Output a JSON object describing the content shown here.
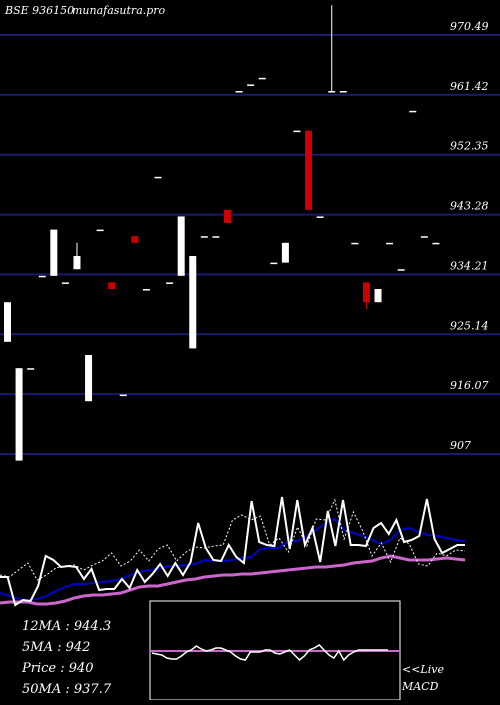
{
  "header": {
    "symbol": "BSE 936150",
    "site": "munafasutra.pro"
  },
  "colors": {
    "background": "#000000",
    "grid": "#1a1a6e",
    "up": "#ffffff",
    "down": "#cc0000",
    "ma_fast": "#ffffff",
    "ma_mid": "#0000cc",
    "ma_slow": "#cc66cc",
    "macd_line": "#ffffff",
    "macd_signal": "#cc66cc"
  },
  "stats": {
    "ma12": "12MA : 944.3",
    "ma5": "5MA : 942",
    "price": "Price   : 940",
    "ma50": "50MA : 937.7"
  },
  "macd": {
    "live": "<<Live",
    "label": "MACD"
  },
  "chart_data": {
    "type": "candlestick",
    "y_ticks": [
      "970.49",
      "961.42",
      "952.35",
      "943.28",
      "934.21",
      "925.14",
      "916.07",
      "907"
    ],
    "y_tick_values": [
      970.49,
      961.42,
      952.35,
      943.28,
      934.21,
      925.14,
      916.07,
      907
    ],
    "ylim": [
      901,
      975
    ],
    "grid": true,
    "candles": [
      {
        "o": 924,
        "c": 930,
        "h": 930,
        "l": 924
      },
      {
        "o": 906,
        "c": 920,
        "h": 920,
        "l": 906
      },
      {
        "o": 920,
        "c": 920,
        "h": 920,
        "l": 920
      },
      {
        "o": 934,
        "c": 934,
        "h": 934,
        "l": 934
      },
      {
        "o": 934,
        "c": 941,
        "h": 941,
        "l": 934
      },
      {
        "o": 933,
        "c": 933,
        "h": 933,
        "l": 933
      },
      {
        "o": 935,
        "c": 937,
        "h": 939,
        "l": 935
      },
      {
        "o": 915,
        "c": 922,
        "h": 922,
        "l": 915
      },
      {
        "o": 941,
        "c": 941,
        "h": 941,
        "l": 941
      },
      {
        "o": 933,
        "c": 932,
        "h": 933,
        "l": 932
      },
      {
        "o": 916,
        "c": 916,
        "h": 916,
        "l": 916
      },
      {
        "o": 940,
        "c": 939,
        "h": 940,
        "l": 939
      },
      {
        "o": 932,
        "c": 932,
        "h": 932,
        "l": 932
      },
      {
        "o": 949,
        "c": 949,
        "h": 949,
        "l": 949
      },
      {
        "o": 933,
        "c": 933,
        "h": 933,
        "l": 933
      },
      {
        "o": 934,
        "c": 943,
        "h": 943,
        "l": 934
      },
      {
        "o": 923,
        "c": 937,
        "h": 937,
        "l": 923
      },
      {
        "o": 940,
        "c": 940,
        "h": 940,
        "l": 940
      },
      {
        "o": 940,
        "c": 940,
        "h": 940,
        "l": 940
      },
      {
        "o": 944,
        "c": 942,
        "h": 944,
        "l": 942
      },
      {
        "o": 962,
        "c": 962,
        "h": 962,
        "l": 962
      },
      {
        "o": 963,
        "c": 963,
        "h": 963,
        "l": 963
      },
      {
        "o": 964,
        "c": 964,
        "h": 964,
        "l": 964
      },
      {
        "o": 936,
        "c": 936,
        "h": 936,
        "l": 936
      },
      {
        "o": 936,
        "c": 939,
        "h": 939,
        "l": 936
      },
      {
        "o": 956,
        "c": 956,
        "h": 956,
        "l": 956
      },
      {
        "o": 956,
        "c": 944,
        "h": 956,
        "l": 944
      },
      {
        "o": 943,
        "c": 943,
        "h": 943,
        "l": 943
      },
      {
        "o": 962,
        "c": 962,
        "h": 975,
        "l": 962
      },
      {
        "o": 962,
        "c": 962,
        "h": 962,
        "l": 962
      },
      {
        "o": 939,
        "c": 939,
        "h": 939,
        "l": 939
      },
      {
        "o": 933,
        "c": 930,
        "h": 933,
        "l": 929
      },
      {
        "o": 930,
        "c": 932,
        "h": 932,
        "l": 930
      },
      {
        "o": 939,
        "c": 939,
        "h": 939,
        "l": 939
      },
      {
        "o": 935,
        "c": 935,
        "h": 935,
        "l": 935
      },
      {
        "o": 959,
        "c": 959,
        "h": 959,
        "l": 959
      },
      {
        "o": 940,
        "c": 940,
        "h": 940,
        "l": 940
      },
      {
        "o": 939,
        "c": 939,
        "h": 939,
        "l": 939
      }
    ],
    "ma_fast": [
      575,
      577,
      570,
      563,
      580,
      575,
      568,
      566,
      565,
      570,
      565,
      561,
      553,
      566,
      561,
      550,
      561,
      549,
      545,
      561,
      552,
      547,
      548,
      546,
      545,
      520,
      515,
      520,
      516,
      545,
      538,
      552,
      527,
      546,
      519,
      520,
      500,
      539,
      512,
      531,
      556,
      543,
      562,
      538,
      544,
      564,
      566,
      553,
      556,
      550,
      551
    ],
    "ma_mid": [
      593,
      596,
      599,
      600,
      599,
      596,
      591,
      587,
      584,
      584,
      583,
      582,
      581,
      579,
      575,
      572,
      570,
      569,
      566,
      566,
      565,
      564,
      560,
      561,
      561,
      560,
      558,
      557,
      549,
      548,
      548,
      542,
      541,
      536,
      530,
      523,
      519,
      530,
      533,
      536,
      540,
      544,
      540,
      530,
      528,
      532,
      535,
      536,
      538,
      540,
      541
    ],
    "ma_slow": [
      603,
      602,
      602,
      602,
      604,
      604,
      603,
      601,
      598,
      596,
      595,
      595,
      594,
      593,
      590,
      587,
      586,
      586,
      584,
      582,
      580,
      579,
      577,
      576,
      575,
      575,
      574,
      574,
      573,
      572,
      571,
      570,
      569,
      568,
      567,
      567,
      566,
      565,
      563,
      562,
      561,
      558,
      556,
      558,
      560,
      560,
      560,
      559,
      558,
      559,
      560
    ],
    "price_line": [
      577,
      577,
      605,
      600,
      601,
      586,
      556,
      560,
      567,
      566,
      567,
      579,
      569,
      590,
      589,
      589,
      579,
      588,
      570,
      582,
      574,
      564,
      576,
      563,
      575,
      562,
      523,
      548,
      560,
      561,
      545,
      557,
      563,
      501,
      542,
      545,
      546,
      497,
      549,
      500,
      545,
      528,
      562,
      511,
      546,
      500,
      545,
      545,
      546,
      528,
      523,
      534,
      520,
      542,
      540,
      536,
      499,
      539,
      553,
      549,
      545,
      545
    ],
    "macd_line": [
      653,
      654,
      655,
      658,
      659,
      659,
      656,
      652,
      650,
      646,
      649,
      651,
      650,
      648,
      648,
      650,
      652,
      656,
      659,
      660,
      652,
      652,
      652,
      650,
      650,
      653,
      654,
      652,
      650,
      655,
      660,
      656,
      650,
      648,
      645,
      650,
      655,
      658,
      651,
      660,
      655,
      652,
      650,
      650,
      650,
      650,
      650,
      650,
      650
    ],
    "macd_signal": 651
  }
}
